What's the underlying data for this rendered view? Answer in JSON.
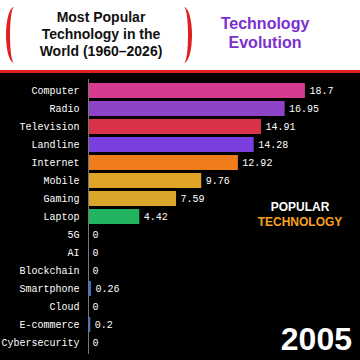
{
  "chart_data": {
    "type": "bar",
    "title": "Most Popular Technology in the World (1960–2026)",
    "subtitle": "Technology Evolution",
    "orientation": "horizontal",
    "categories": [
      "Computer",
      "Radio",
      "Television",
      "Landline",
      "Internet",
      "Mobile",
      "Gaming",
      "Laptop",
      "5G",
      "AI",
      "Blockchain",
      "Smartphone",
      "Cloud",
      "E-commerce",
      "Cybersecurity"
    ],
    "values": [
      18.7,
      16.95,
      14.91,
      14.28,
      12.92,
      9.76,
      7.59,
      4.42,
      0,
      0,
      0,
      0.26,
      0,
      0.2,
      0
    ],
    "colors": [
      "#d63b8f",
      "#8e44c9",
      "#d9334a",
      "#7b3fe0",
      "#f07d1c",
      "#e0a526",
      "#d9a62a",
      "#22b35e",
      "#3a8fd9",
      "#3a8fd9",
      "#3a8fd9",
      "#3a6fd9",
      "#3a8fd9",
      "#3a6fd9",
      "#3a8fd9"
    ],
    "xlim": [
      0,
      20
    ],
    "data_labels": true,
    "tick_labels": "y",
    "annotations": [
      "POPULAR TECHNOLOGY",
      "2005"
    ]
  }
}
